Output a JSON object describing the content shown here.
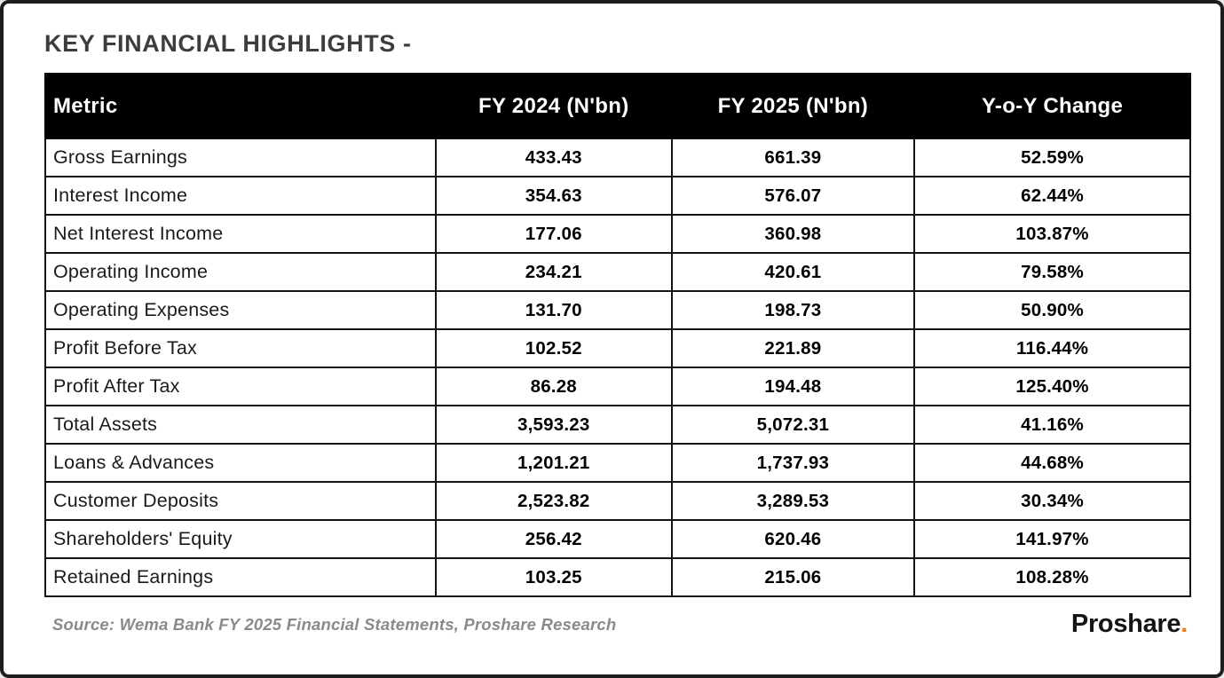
{
  "page": {
    "title": "KEY FINANCIAL HIGHLIGHTS -"
  },
  "chart_data": {
    "type": "table",
    "title": "KEY FINANCIAL HIGHLIGHTS",
    "columns": [
      "Metric",
      "FY 2024 (N'bn)",
      "FY 2025 (N'bn)",
      "Y-o-Y Change"
    ],
    "rows": [
      [
        "Gross Earnings",
        "433.43",
        "661.39",
        "52.59%"
      ],
      [
        "Interest Income",
        "354.63",
        "576.07",
        "62.44%"
      ],
      [
        "Net Interest Income",
        "177.06",
        "360.98",
        "103.87%"
      ],
      [
        "Operating Income",
        "234.21",
        "420.61",
        "79.58%"
      ],
      [
        "Operating Expenses",
        "131.70",
        "198.73",
        "50.90%"
      ],
      [
        "Profit Before Tax",
        "102.52",
        "221.89",
        "116.44%"
      ],
      [
        "Profit After Tax",
        "86.28",
        "194.48",
        "125.40%"
      ],
      [
        "Total Assets",
        "3,593.23",
        "5,072.31",
        "41.16%"
      ],
      [
        "Loans & Advances",
        "1,201.21",
        "1,737.93",
        "44.68%"
      ],
      [
        "Customer Deposits",
        "2,523.82",
        "3,289.53",
        "30.34%"
      ],
      [
        "Shareholders' Equity",
        "256.42",
        "620.46",
        "141.97%"
      ],
      [
        "Retained Earnings",
        "103.25",
        "215.06",
        "108.28%"
      ]
    ]
  },
  "footer": {
    "source": "Source: Wema Bank FY 2025 Financial Statements, Proshare Research",
    "brand": "Proshare",
    "brand_dot": ".",
    "brand_dot_color": "#E87E22"
  }
}
